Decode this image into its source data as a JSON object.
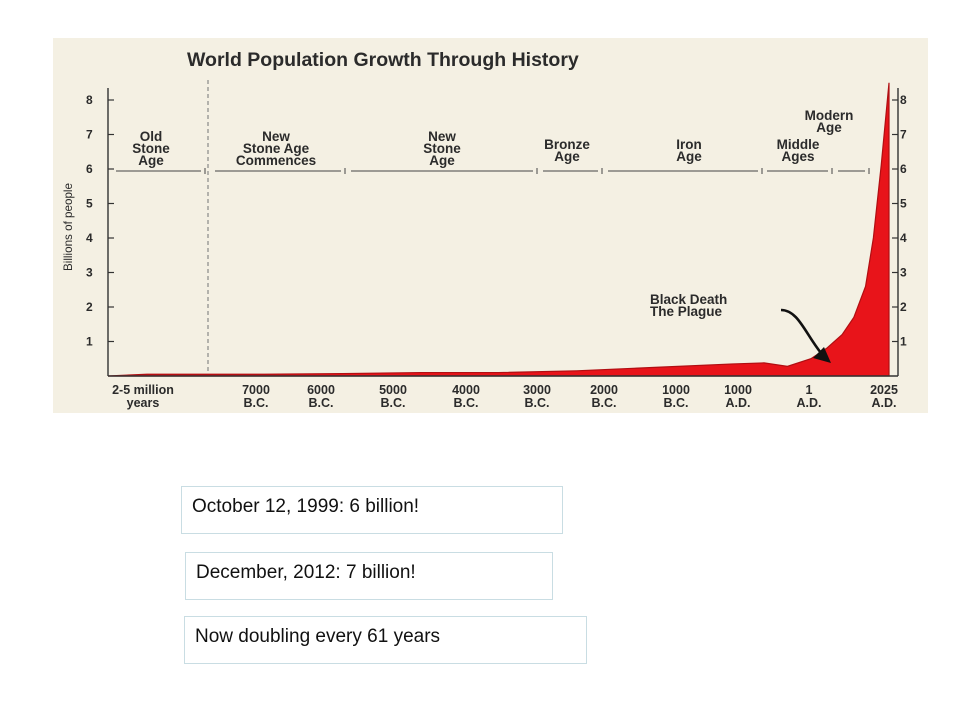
{
  "chart_data": {
    "type": "area",
    "title": "World Population Growth Through History",
    "ylabel": "Billions of people",
    "xlabel": "",
    "ylim": [
      0,
      8.5
    ],
    "y_ticks": [
      "1",
      "2",
      "3",
      "4",
      "5",
      "6",
      "7",
      "8"
    ],
    "x_ticks": [
      {
        "line1": "2-5 million",
        "line2": "years"
      },
      {
        "line1": "7000",
        "line2": "B.C."
      },
      {
        "line1": "6000",
        "line2": "B.C."
      },
      {
        "line1": "5000",
        "line2": "B.C."
      },
      {
        "line1": "4000",
        "line2": "B.C."
      },
      {
        "line1": "3000",
        "line2": "B.C."
      },
      {
        "line1": "2000",
        "line2": "B.C."
      },
      {
        "line1": "1000",
        "line2": "B.C."
      },
      {
        "line1": "1000",
        "line2": "A.D."
      },
      {
        "line1": "1",
        "line2": "A.D."
      },
      {
        "line1": "2025",
        "line2": "A.D."
      }
    ],
    "eras": [
      {
        "lines": [
          "Old",
          "Stone",
          "Age"
        ]
      },
      {
        "lines": [
          "New",
          "Stone Age",
          "Commences"
        ]
      },
      {
        "lines": [
          "New",
          "Stone",
          "Age"
        ]
      },
      {
        "lines": [
          "Bronze",
          "Age"
        ]
      },
      {
        "lines": [
          "Iron",
          "Age"
        ]
      },
      {
        "lines": [
          "Middle",
          "Ages"
        ]
      },
      {
        "lines": [
          "Modern",
          "Age"
        ]
      }
    ],
    "annotation": {
      "lines": [
        "Black Death",
        "The Plague"
      ]
    },
    "series": [
      {
        "x": [
          0,
          0.5,
          1,
          2,
          3,
          4,
          5,
          6,
          7,
          8,
          8.4,
          8.7,
          9,
          9.2,
          9.4,
          9.55,
          9.7,
          9.8,
          9.9,
          10
        ],
        "values": [
          0.0,
          0.05,
          0.05,
          0.05,
          0.07,
          0.1,
          0.1,
          0.15,
          0.25,
          0.35,
          0.38,
          0.28,
          0.5,
          0.8,
          1.2,
          1.7,
          2.6,
          4.0,
          6.1,
          8.5
        ]
      }
    ],
    "colors": {
      "area": "#e8141a",
      "background": "#f4f0e3",
      "text": "#2b2b2b"
    }
  },
  "notes": [
    "October 12, 1999: 6 billion!",
    "December, 2012: 7 billion!",
    "Now doubling every 61 years"
  ]
}
